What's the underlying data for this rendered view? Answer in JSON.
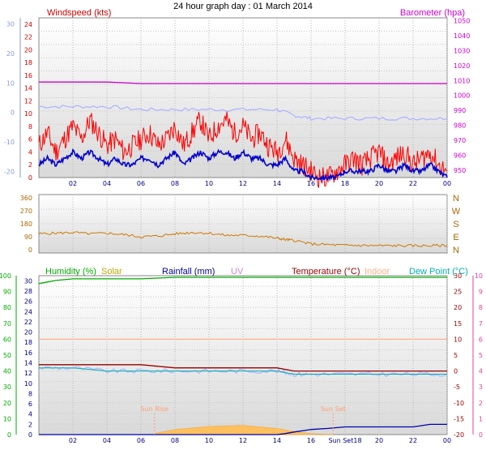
{
  "page_title": "24 hour graph day : 01 March 2014",
  "chart_data": [
    {
      "type": "line",
      "id": "wind_baro",
      "labels": {
        "windspeed": "Windspeed (kts)",
        "barometer": "Barometer (hpa)"
      },
      "x_ticks": [
        "02",
        "04",
        "06",
        "08",
        "10",
        "12",
        "14",
        "16",
        "18",
        "20",
        "22",
        "00"
      ],
      "left_ticks": [
        "24",
        "22",
        "20",
        "18",
        "16",
        "14",
        "12",
        "10",
        "8",
        "6",
        "4",
        "2",
        "0"
      ],
      "ylim_wind": [
        0,
        25
      ],
      "right_ticks": [
        "1050",
        "1040",
        "1030",
        "1020",
        "1010",
        "1000",
        "990",
        "980",
        "970",
        "960",
        "950"
      ],
      "ylim_baro": [
        945,
        1052
      ],
      "outer_left_ticks": [
        "30",
        "20",
        "10",
        "0",
        "-10",
        "-20"
      ],
      "ylim_outer": [
        -22,
        32
      ],
      "colors": {
        "wind_gust": "#ff0000",
        "wind_avg": "#0000cc",
        "barometer": "#cc00cc",
        "temperature": "#aab4ff",
        "wind_axis": "#cc0000",
        "baro_axis": "#cc00cc",
        "outer_axis": "#8a9bd8"
      },
      "series": [
        {
          "name": "Windspeed (kts)",
          "role": "gust",
          "x": [
            0,
            0.5,
            1,
            1.5,
            2,
            2.5,
            3,
            3.5,
            4,
            4.5,
            5,
            5.5,
            6,
            6.5,
            7,
            7.5,
            8,
            8.5,
            9,
            9.5,
            10,
            10.5,
            11,
            11.5,
            12,
            12.5,
            13,
            13.5,
            14,
            14.5,
            15,
            15.5,
            16,
            16.5,
            17,
            17.5,
            18,
            18.5,
            19,
            19.5,
            20,
            20.5,
            21,
            21.5,
            22,
            22.5,
            23,
            23.5,
            24
          ],
          "values": [
            5,
            7,
            4,
            6,
            8,
            6,
            9,
            7,
            5,
            6,
            4,
            5,
            6,
            7,
            5,
            6,
            8,
            5,
            7,
            9,
            6,
            8,
            9,
            7,
            8,
            6,
            7,
            5,
            4,
            6,
            3,
            2,
            1,
            0,
            0,
            1,
            2,
            3,
            2,
            3,
            4,
            2,
            3,
            4,
            2,
            3,
            4,
            2,
            1
          ]
        },
        {
          "name": "Windspeed (kts)",
          "role": "average",
          "x": [
            0,
            0.5,
            1,
            1.5,
            2,
            2.5,
            3,
            3.5,
            4,
            4.5,
            5,
            5.5,
            6,
            6.5,
            7,
            7.5,
            8,
            8.5,
            9,
            9.5,
            10,
            10.5,
            11,
            11.5,
            12,
            12.5,
            13,
            13.5,
            14,
            14.5,
            15,
            15.5,
            16,
            16.5,
            17,
            17.5,
            18,
            18.5,
            19,
            19.5,
            20,
            20.5,
            21,
            21.5,
            22,
            22.5,
            23,
            23.5,
            24
          ],
          "values": [
            2,
            3,
            2,
            3,
            4,
            3,
            4,
            3,
            2,
            3,
            2,
            2,
            3,
            3,
            2,
            3,
            4,
            2,
            3,
            4,
            3,
            4,
            4,
            3,
            4,
            3,
            3,
            2,
            2,
            3,
            1,
            1,
            0,
            0,
            0,
            0,
            1,
            1,
            1,
            1,
            2,
            1,
            1,
            2,
            1,
            1,
            2,
            1,
            0
          ]
        },
        {
          "name": "Barometer (hpa)",
          "x": [
            0,
            2,
            4,
            6,
            8,
            10,
            12,
            14,
            16,
            18,
            20,
            22,
            24
          ],
          "values": [
            1009,
            1009,
            1009,
            1008,
            1008,
            1008,
            1008,
            1008,
            1008,
            1008,
            1008,
            1008,
            1008
          ]
        },
        {
          "name": "Temperature",
          "x": [
            0,
            2,
            4,
            6,
            8,
            10,
            12,
            14,
            15,
            16,
            18,
            20,
            22,
            24
          ],
          "values": [
            2,
            2,
            2,
            1,
            1,
            1,
            1,
            1,
            -1,
            -2,
            -2,
            -2,
            -2,
            -2
          ]
        }
      ]
    },
    {
      "type": "line",
      "id": "wind_dir",
      "left_ticks": [
        "360",
        "270",
        "180",
        "90",
        "0"
      ],
      "ylim": [
        0,
        360
      ],
      "compass": [
        "N",
        "W",
        "S",
        "E",
        "N"
      ],
      "colors": {
        "direction": "#cc7a00",
        "axis": "#aa6600"
      },
      "series": [
        {
          "name": "Wind direction",
          "x": [
            0,
            1,
            2,
            3,
            4,
            5,
            6,
            7,
            8,
            9,
            10,
            11,
            12,
            13,
            14,
            14.5,
            15,
            16,
            17,
            18,
            19,
            20,
            21,
            22,
            23,
            24
          ],
          "values": [
            110,
            115,
            120,
            110,
            115,
            105,
            90,
            95,
            110,
            120,
            115,
            100,
            100,
            95,
            80,
            70,
            65,
            40,
            35,
            30,
            30,
            28,
            28,
            28,
            28,
            30
          ]
        }
      ]
    },
    {
      "type": "line",
      "id": "temp_humidity",
      "legend": [
        "Humidity (%)",
        "Solar",
        "Rainfall (mm)",
        "UV",
        "Temperature (°C)",
        "Indoor",
        "Dew Point (°C)"
      ],
      "legend_colors": [
        "#00aa00",
        "#bbaa00",
        "#000099",
        "#cc88cc",
        "#990000",
        "#ffb08a",
        "#00b0b0"
      ],
      "x_ticks": [
        "02",
        "04",
        "06",
        "08",
        "10",
        "12",
        "14",
        "16",
        "Sun Set18",
        "20",
        "22",
        "00"
      ],
      "hum_ticks": [
        "100",
        "90",
        "80",
        "70",
        "60",
        "50",
        "40",
        "30",
        "20",
        "10",
        "0"
      ],
      "ylim_hum": [
        0,
        100
      ],
      "rain_ticks": [
        "30",
        "28",
        "26",
        "24",
        "22",
        "20",
        "18",
        "16",
        "14",
        "12",
        "10",
        "8",
        "6",
        "4",
        "2",
        "0"
      ],
      "ylim_rain": [
        0,
        31
      ],
      "temp_ticks": [
        "30",
        "25",
        "20",
        "15",
        "10",
        "5",
        "0",
        "-5",
        "-10",
        "-15",
        "-20"
      ],
      "ylim_temp": [
        -20,
        30
      ],
      "uv_ticks": [
        "10",
        "9",
        "8",
        "7",
        "6",
        "5",
        "4",
        "3",
        "2",
        "1",
        "0"
      ],
      "ylim_uv": [
        0,
        10
      ],
      "annotations": {
        "sun_rise": "Sun Rise",
        "sun_set": "Sun Set",
        "sun_rise_x": 6.8,
        "sun_set_x": 17.3
      },
      "series": [
        {
          "name": "Humidity (%)",
          "x": [
            0,
            0.5,
            1,
            2,
            4,
            6,
            8,
            10,
            12,
            14,
            16,
            18,
            20,
            22,
            24
          ],
          "values": [
            95,
            96,
            97,
            98,
            98,
            98,
            99,
            99,
            99,
            99,
            99,
            99,
            99,
            99,
            99
          ]
        },
        {
          "name": "Temperature (°C)",
          "x": [
            0,
            2,
            4,
            6,
            8,
            10,
            12,
            14,
            15,
            16,
            18,
            20,
            22,
            24
          ],
          "values": [
            2,
            2,
            2,
            2,
            1,
            1,
            1,
            1,
            0,
            0,
            0,
            0,
            0,
            0
          ]
        },
        {
          "name": "Indoor",
          "x": [
            0,
            4,
            8,
            12,
            16,
            20,
            24
          ],
          "values": [
            10,
            10,
            10,
            10,
            10,
            10,
            10
          ]
        },
        {
          "name": "Dew Point (°C)",
          "x": [
            0,
            2,
            4,
            6,
            8,
            10,
            12,
            14,
            15,
            16,
            18,
            20,
            22,
            24
          ],
          "values": [
            1,
            1,
            0,
            0,
            0,
            0,
            0,
            0,
            -1,
            -1,
            -1,
            -1,
            -1,
            -1
          ]
        },
        {
          "name": "Solar",
          "x": [
            6.8,
            8,
            10,
            12,
            14,
            15,
            16,
            17.3
          ],
          "values": [
            0.2,
            1,
            1.6,
            1.8,
            1.2,
            0.6,
            0.2,
            0
          ]
        },
        {
          "name": "Rainfall (mm)",
          "x": [
            0,
            14,
            14.5,
            15,
            16,
            17,
            18,
            19,
            20,
            21,
            22,
            23,
            24
          ],
          "values": [
            0,
            0,
            0.2,
            0.5,
            1,
            1.2,
            1.5,
            1.5,
            1.5,
            1.5,
            1.5,
            2,
            2
          ]
        }
      ]
    }
  ]
}
